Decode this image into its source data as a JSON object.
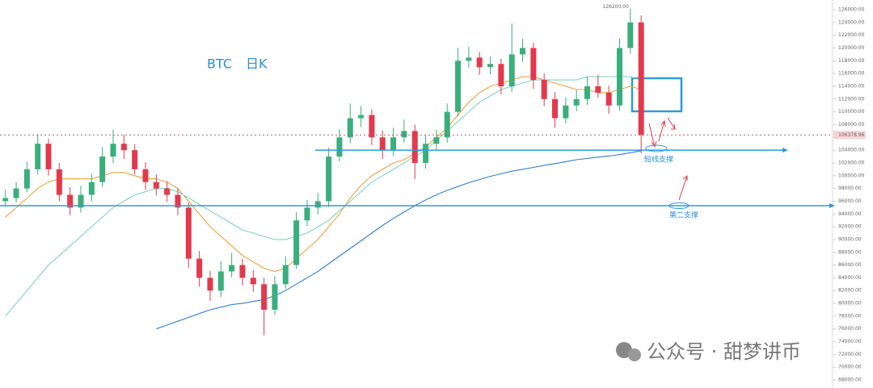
{
  "chart_data": {
    "type": "candlestick",
    "title": "BTC",
    "subtitle": "日K",
    "up_color": "#3aae7c",
    "down_color": "#e2394d",
    "ylim": [
      66740,
      127520
    ],
    "yticks": [
      {
        "value": 68000,
        "label": "68000.00"
      },
      {
        "value": 70000,
        "label": "70000.00"
      },
      {
        "value": 72000,
        "label": "72000.00"
      },
      {
        "value": 74000,
        "label": "74000.00"
      },
      {
        "value": 76000,
        "label": "76000.00"
      },
      {
        "value": 78000,
        "label": "78000.00"
      },
      {
        "value": 80000,
        "label": "80000.00"
      },
      {
        "value": 82000,
        "label": "82000.00"
      },
      {
        "value": 84000,
        "label": "84000.00"
      },
      {
        "value": 86000,
        "label": "86000.00"
      },
      {
        "value": 88000,
        "label": "88000.00"
      },
      {
        "value": 90000,
        "label": "90000.00"
      },
      {
        "value": 92000,
        "label": "92000.00"
      },
      {
        "value": 94000,
        "label": "94000.00"
      },
      {
        "value": 96000,
        "label": "96000.00"
      },
      {
        "value": 98000,
        "label": "98000.00"
      },
      {
        "value": 100000,
        "label": "100000.00"
      },
      {
        "value": 102000,
        "label": "102000.00"
      },
      {
        "value": 104000,
        "label": "104000.00"
      },
      {
        "value": 106000,
        "label": "106000.00"
      },
      {
        "value": 108000,
        "label": "108000.00"
      },
      {
        "value": 110000,
        "label": "110000.00"
      },
      {
        "value": 112000,
        "label": "112000.00"
      },
      {
        "value": 114000,
        "label": "114000.00"
      },
      {
        "value": 116000,
        "label": "116000.00"
      },
      {
        "value": 118000,
        "label": "118000.00"
      },
      {
        "value": 120000,
        "label": "120000.00"
      },
      {
        "value": 122000,
        "label": "122000.00"
      },
      {
        "value": 124000,
        "label": "124000.00"
      },
      {
        "value": 126000,
        "label": "126000.00"
      }
    ],
    "candles": [
      [
        96000,
        97800,
        95200,
        96500
      ],
      [
        96500,
        99000,
        95800,
        98000
      ],
      [
        98000,
        102200,
        97400,
        101000
      ],
      [
        101000,
        106500,
        100200,
        105000
      ],
      [
        105000,
        105800,
        100000,
        101000
      ],
      [
        101000,
        102000,
        96000,
        97000
      ],
      [
        97000,
        98200,
        93800,
        95000
      ],
      [
        95000,
        98400,
        94200,
        97000
      ],
      [
        97000,
        100300,
        96000,
        99000
      ],
      [
        99000,
        104500,
        98200,
        103000
      ],
      [
        103000,
        107200,
        102000,
        105000
      ],
      [
        105000,
        106400,
        102600,
        104000
      ],
      [
        104000,
        104900,
        100200,
        101000
      ],
      [
        101000,
        102100,
        97800,
        99000
      ],
      [
        99000,
        100200,
        96900,
        98000
      ],
      [
        98000,
        99100,
        95900,
        97000
      ],
      [
        97000,
        98000,
        93800,
        95000
      ],
      [
        95000,
        95800,
        85600,
        87000
      ],
      [
        87000,
        88200,
        82600,
        84000
      ],
      [
        84000,
        85100,
        80400,
        82000
      ],
      [
        82000,
        86600,
        81000,
        85000
      ],
      [
        85000,
        87900,
        84100,
        86000
      ],
      [
        86000,
        87000,
        82800,
        84000
      ],
      [
        84000,
        85200,
        81800,
        83000
      ],
      [
        83000,
        84000,
        75000,
        79000
      ],
      [
        79000,
        84300,
        78200,
        83000
      ],
      [
        83000,
        87400,
        82300,
        86000
      ],
      [
        86000,
        94300,
        85400,
        93000
      ],
      [
        93000,
        96200,
        92100,
        95000
      ],
      [
        95000,
        97300,
        93900,
        96000
      ],
      [
        96000,
        104400,
        95100,
        103000
      ],
      [
        103000,
        107300,
        102200,
        106000
      ],
      [
        106000,
        111300,
        105100,
        109000
      ],
      [
        109000,
        110900,
        107600,
        109500
      ],
      [
        109500,
        110400,
        104800,
        106000
      ],
      [
        106000,
        107100,
        102600,
        104000
      ],
      [
        104000,
        107500,
        103100,
        106000
      ],
      [
        106000,
        108800,
        105200,
        107000
      ],
      [
        107000,
        108000,
        99500,
        102000
      ],
      [
        102000,
        106300,
        101100,
        105000
      ],
      [
        105000,
        107200,
        104100,
        106000
      ],
      [
        106000,
        111300,
        105200,
        110000
      ],
      [
        110000,
        120000,
        109300,
        118000
      ],
      [
        118000,
        120200,
        116900,
        118500
      ],
      [
        118500,
        119400,
        115800,
        117000
      ],
      [
        117000,
        118700,
        115900,
        117500
      ],
      [
        117500,
        118300,
        112700,
        114000
      ],
      [
        114000,
        123800,
        113100,
        119000
      ],
      [
        119000,
        121500,
        117800,
        120000
      ],
      [
        120000,
        120800,
        113600,
        115000
      ],
      [
        115000,
        116000,
        110900,
        112000
      ],
      [
        112000,
        113100,
        107500,
        109000
      ],
      [
        109000,
        112300,
        108200,
        111000
      ],
      [
        111000,
        113400,
        110100,
        112000
      ],
      [
        112000,
        115500,
        111100,
        114000
      ],
      [
        114000,
        115800,
        112200,
        113000
      ],
      [
        113000,
        114100,
        109700,
        111000
      ],
      [
        111000,
        121500,
        110200,
        120000
      ],
      [
        120000,
        126200,
        119100,
        124000
      ],
      [
        124000,
        125100,
        103500,
        106378.96
      ]
    ],
    "series": [
      {
        "color": "#f0a23c",
        "values": [
          93500,
          95000,
          96500,
          98000,
          99000,
          99500,
          99500,
          99500,
          99500,
          100000,
          100500,
          100500,
          100000,
          99500,
          99500,
          99000,
          98000,
          96000,
          94000,
          92000,
          90500,
          89000,
          87500,
          86500,
          85500,
          85000,
          85500,
          87000,
          88500,
          90000,
          92000,
          94000,
          96500,
          98500,
          100000,
          101000,
          102000,
          102500,
          103500,
          104500,
          106000,
          107500,
          109500,
          111500,
          113000,
          114000,
          114500,
          115000,
          115500,
          115500,
          115000,
          114500,
          114000,
          113500,
          113500,
          113000,
          113000,
          113500,
          114000,
          113500
        ]
      },
      {
        "color": "#7fd3c4",
        "values": [
          78000,
          80000,
          82000,
          84000,
          86000,
          87500,
          89000,
          90500,
          92000,
          93500,
          95000,
          96000,
          97000,
          97500,
          98000,
          98000,
          97500,
          96500,
          95500,
          94500,
          93500,
          92500,
          91500,
          91000,
          90500,
          90000,
          90000,
          90500,
          91000,
          92000,
          93000,
          94500,
          96000,
          97500,
          99000,
          100000,
          101000,
          102000,
          103000,
          104000,
          105500,
          107000,
          108500,
          110000,
          111500,
          112500,
          113500,
          114000,
          114500,
          115000,
          115000,
          115000,
          115000,
          115000,
          115500,
          115500,
          115500,
          115500,
          115500,
          115000
        ]
      },
      {
        "color": "#2f7fd0",
        "values": [
          null,
          null,
          null,
          null,
          null,
          null,
          null,
          null,
          null,
          null,
          null,
          null,
          null,
          null,
          76000,
          76600,
          77200,
          77800,
          78400,
          79000,
          79400,
          79800,
          80000,
          80300,
          80600,
          81200,
          82000,
          83000,
          84000,
          85000,
          86200,
          87400,
          88600,
          89800,
          91000,
          92200,
          93300,
          94300,
          95300,
          96200,
          97000,
          97700,
          98300,
          98900,
          99400,
          99900,
          100300,
          100700,
          101000,
          101300,
          101600,
          101900,
          102200,
          102500,
          102700,
          102900,
          103100,
          103300,
          103600,
          103900
        ]
      }
    ],
    "peak_label": {
      "value": 126200,
      "label": "126200.00"
    },
    "supports": [
      {
        "value": 104000,
        "label": "短线支撑"
      },
      {
        "value": 95300,
        "label": "第二支撑"
      }
    ],
    "watermark": "公众号 · 甜梦讲币"
  }
}
